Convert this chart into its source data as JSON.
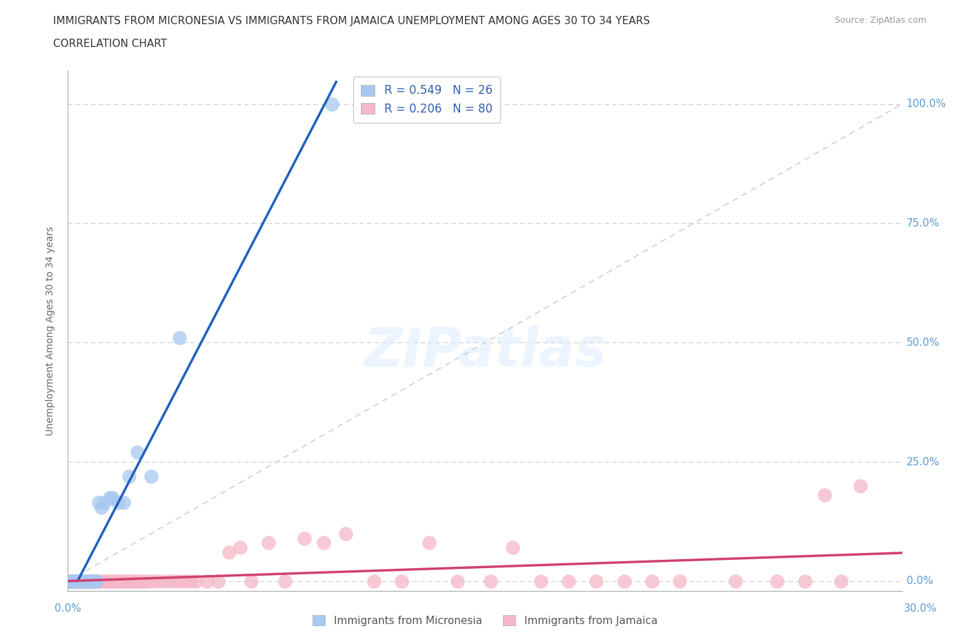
{
  "title_line1": "IMMIGRANTS FROM MICRONESIA VS IMMIGRANTS FROM JAMAICA UNEMPLOYMENT AMONG AGES 30 TO 34 YEARS",
  "title_line2": "CORRELATION CHART",
  "source": "Source: ZipAtlas.com",
  "ylabel": "Unemployment Among Ages 30 to 34 years",
  "watermark": "ZIPatlas",
  "xlim": [
    0.0,
    0.3
  ],
  "ylim": [
    -0.02,
    1.07
  ],
  "ytick_labels": [
    "0.0%",
    "25.0%",
    "50.0%",
    "75.0%",
    "100.0%"
  ],
  "ytick_values": [
    0.0,
    0.25,
    0.5,
    0.75,
    1.0
  ],
  "micronesia_color": "#a8c8f0",
  "jamaica_color": "#f5b8c8",
  "micronesia_line_color": "#2060c0",
  "jamaica_line_color": "#d04070",
  "diagonal_color": "#c8d0dc",
  "mic_x": [
    0.001,
    0.002,
    0.002,
    0.003,
    0.003,
    0.004,
    0.004,
    0.005,
    0.006,
    0.007,
    0.008,
    0.009,
    0.01,
    0.01,
    0.011,
    0.012,
    0.013,
    0.015,
    0.016,
    0.018,
    0.02,
    0.022,
    0.025,
    0.03,
    0.04,
    0.095
  ],
  "mic_y": [
    0.0,
    0.0,
    0.0,
    0.0,
    0.0,
    0.0,
    0.0,
    0.0,
    0.0,
    0.0,
    0.0,
    0.0,
    0.0,
    0.0,
    0.165,
    0.155,
    0.165,
    0.175,
    0.175,
    0.165,
    0.165,
    0.22,
    0.27,
    0.22,
    0.51,
    1.0
  ],
  "jam_x": [
    0.0,
    0.0,
    0.0,
    0.001,
    0.001,
    0.001,
    0.002,
    0.002,
    0.002,
    0.003,
    0.003,
    0.003,
    0.004,
    0.004,
    0.005,
    0.005,
    0.006,
    0.006,
    0.007,
    0.007,
    0.008,
    0.008,
    0.009,
    0.01,
    0.01,
    0.011,
    0.012,
    0.013,
    0.014,
    0.015,
    0.016,
    0.017,
    0.018,
    0.019,
    0.02,
    0.021,
    0.022,
    0.023,
    0.024,
    0.025,
    0.026,
    0.027,
    0.028,
    0.03,
    0.032,
    0.034,
    0.036,
    0.038,
    0.04,
    0.042,
    0.044,
    0.046,
    0.05,
    0.054,
    0.058,
    0.062,
    0.066,
    0.072,
    0.078,
    0.085,
    0.092,
    0.1,
    0.11,
    0.12,
    0.13,
    0.14,
    0.152,
    0.16,
    0.17,
    0.18,
    0.19,
    0.2,
    0.21,
    0.22,
    0.24,
    0.255,
    0.265,
    0.272,
    0.278,
    0.285
  ],
  "jam_y": [
    0.0,
    0.0,
    0.0,
    0.0,
    0.0,
    0.0,
    0.0,
    0.0,
    0.0,
    0.0,
    0.0,
    0.0,
    0.0,
    0.0,
    0.0,
    0.0,
    0.0,
    0.0,
    0.0,
    0.0,
    0.0,
    0.0,
    0.0,
    0.0,
    0.0,
    0.0,
    0.0,
    0.0,
    0.0,
    0.0,
    0.0,
    0.0,
    0.0,
    0.0,
    0.0,
    0.0,
    0.0,
    0.0,
    0.0,
    0.0,
    0.0,
    0.0,
    0.0,
    0.0,
    0.0,
    0.0,
    0.0,
    0.0,
    0.0,
    0.0,
    0.0,
    0.0,
    0.0,
    0.0,
    0.06,
    0.07,
    0.0,
    0.08,
    0.0,
    0.09,
    0.08,
    0.1,
    0.0,
    0.0,
    0.08,
    0.0,
    0.0,
    0.07,
    0.0,
    0.0,
    0.0,
    0.0,
    0.0,
    0.0,
    0.0,
    0.0,
    0.0,
    0.18,
    0.0,
    0.2
  ]
}
